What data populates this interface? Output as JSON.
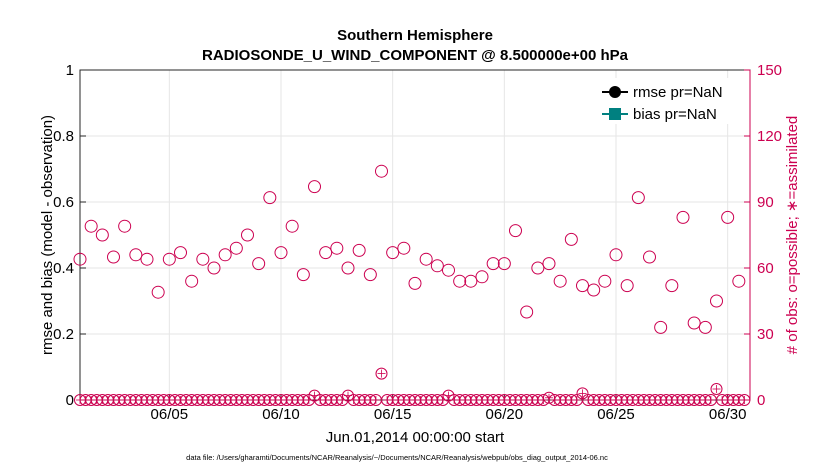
{
  "chart_data": {
    "type": "scatter",
    "title": "Southern Hemisphere",
    "subtitle": "RADIOSONDE_U_WIND_COMPONENT @ 8.500000e+00 hPa",
    "xlabel": "Jun.01,2014 00:00:00 start",
    "ylabel_left": "rmse and bias (model - observation)",
    "ylabel_right": "# of obs: o=possible; ∗=assimilated",
    "footer": "data file: /Users/gharamti/Documents/NCAR/Reanalysis/~/Documents/NCAR/Reanalysis/webpub/obs_diag_output_2014-06.nc",
    "xlim": [
      1.0,
      31.0
    ],
    "ylim_left": [
      0,
      1
    ],
    "ylim_right": [
      0,
      150
    ],
    "grid": true,
    "legend_position": "top-right",
    "x_ticks": [
      {
        "value": 5,
        "label": "06/05"
      },
      {
        "value": 10,
        "label": "06/10"
      },
      {
        "value": 15,
        "label": "06/15"
      },
      {
        "value": 20,
        "label": "06/20"
      },
      {
        "value": 25,
        "label": "06/25"
      },
      {
        "value": 30,
        "label": "06/30"
      }
    ],
    "y_ticks_left": [
      {
        "value": 0,
        "label": "0"
      },
      {
        "value": 0.2,
        "label": "0.2"
      },
      {
        "value": 0.4,
        "label": "0.4"
      },
      {
        "value": 0.6,
        "label": "0.6"
      },
      {
        "value": 0.8,
        "label": "0.8"
      },
      {
        "value": 1,
        "label": "1"
      }
    ],
    "y_ticks_right": [
      {
        "value": 0,
        "label": "0"
      },
      {
        "value": 30,
        "label": "30"
      },
      {
        "value": 60,
        "label": "60"
      },
      {
        "value": 90,
        "label": "90"
      },
      {
        "value": 120,
        "label": "120"
      },
      {
        "value": 150,
        "label": "150"
      }
    ],
    "series": [
      {
        "name": "rmse pr=NaN",
        "role": "legend",
        "color": "#000000",
        "marker": "filled-circle"
      },
      {
        "name": "bias pr=NaN",
        "role": "legend",
        "color": "#008080",
        "marker": "filled-square"
      },
      {
        "name": "obs possible",
        "axis": "right",
        "color": "#cc0050",
        "marker": "open-circle",
        "x": [
          1.0,
          1.5,
          2.0,
          2.5,
          3.0,
          3.5,
          4.0,
          4.5,
          5.0,
          5.5,
          6.0,
          6.5,
          7.0,
          7.5,
          8.0,
          8.5,
          9.0,
          9.5,
          10.0,
          10.5,
          11.0,
          11.5,
          12.0,
          12.5,
          13.0,
          13.5,
          14.0,
          14.5,
          15.0,
          15.5,
          16.0,
          16.5,
          17.0,
          17.5,
          18.0,
          18.5,
          19.0,
          19.5,
          20.0,
          20.5,
          21.0,
          21.5,
          22.0,
          22.5,
          23.0,
          23.5,
          24.0,
          24.5,
          25.0,
          25.5,
          26.0,
          26.5,
          27.0,
          27.5,
          28.0,
          28.5,
          29.0,
          29.5,
          30.0,
          30.5
        ],
        "y": [
          64,
          79,
          75,
          65,
          79,
          66,
          64,
          49,
          64,
          67,
          54,
          64,
          60,
          66,
          69,
          75,
          62,
          92,
          67,
          79,
          57,
          97,
          67,
          69,
          60,
          68,
          57,
          104,
          67,
          69,
          53,
          64,
          61,
          59,
          54,
          54,
          56,
          62,
          62,
          77,
          40,
          60,
          62,
          54,
          73,
          52,
          50,
          54,
          66,
          52,
          92,
          65,
          33,
          52,
          83,
          35,
          33,
          45,
          83,
          54
        ]
      },
      {
        "name": "obs assimilated",
        "axis": "right",
        "color": "#cc0050",
        "marker": "asterisk",
        "x": [
          1.0,
          1.25,
          1.5,
          1.75,
          2.0,
          2.25,
          2.5,
          2.75,
          3.0,
          3.25,
          3.5,
          3.75,
          4.0,
          4.25,
          4.5,
          4.75,
          5.0,
          5.25,
          5.5,
          5.75,
          6.0,
          6.25,
          6.5,
          6.75,
          7.0,
          7.25,
          7.5,
          7.75,
          8.0,
          8.25,
          8.5,
          8.75,
          9.0,
          9.25,
          9.5,
          9.75,
          10.0,
          10.25,
          10.5,
          10.75,
          11.0,
          11.25,
          11.5,
          11.75,
          12.0,
          12.25,
          12.5,
          12.75,
          13.0,
          13.25,
          13.5,
          13.75,
          14.0,
          14.25,
          14.5,
          14.75,
          15.0,
          15.25,
          15.5,
          15.75,
          16.0,
          16.25,
          16.5,
          16.75,
          17.0,
          17.25,
          17.5,
          17.75,
          18.0,
          18.25,
          18.5,
          18.75,
          19.0,
          19.25,
          19.5,
          19.75,
          20.0,
          20.25,
          20.5,
          20.75,
          21.0,
          21.25,
          21.5,
          21.75,
          22.0,
          22.25,
          22.5,
          22.75,
          23.0,
          23.25,
          23.5,
          23.75,
          24.0,
          24.25,
          24.5,
          24.75,
          25.0,
          25.25,
          25.5,
          25.75,
          26.0,
          26.25,
          26.5,
          26.75,
          27.0,
          27.25,
          27.5,
          27.75,
          28.0,
          28.25,
          28.5,
          28.75,
          29.0,
          29.25,
          29.5,
          29.75,
          30.0,
          30.25,
          30.5,
          30.75
        ],
        "y": [
          0,
          0,
          0,
          0,
          0,
          0,
          0,
          0,
          0,
          0,
          0,
          0,
          0,
          0,
          0,
          0,
          0,
          0,
          0,
          0,
          0,
          0,
          0,
          0,
          0,
          0,
          0,
          0,
          0,
          0,
          0,
          0,
          0,
          0,
          0,
          0,
          0,
          0,
          0,
          0,
          0,
          0,
          2,
          0,
          0,
          0,
          0,
          0,
          2,
          0,
          0,
          0,
          0,
          0,
          12,
          0,
          0,
          0,
          0,
          0,
          0,
          0,
          0,
          0,
          0,
          0,
          2,
          0,
          0,
          0,
          0,
          0,
          0,
          0,
          0,
          0,
          0,
          0,
          0,
          0,
          0,
          0,
          0,
          0,
          1,
          0,
          0,
          0,
          0,
          0,
          3,
          0,
          0,
          0,
          0,
          0,
          0,
          0,
          0,
          0,
          0,
          0,
          0,
          0,
          0,
          0,
          0,
          0,
          0,
          0,
          0,
          0,
          0,
          0,
          5,
          0,
          0,
          0,
          0,
          0
        ]
      }
    ]
  }
}
